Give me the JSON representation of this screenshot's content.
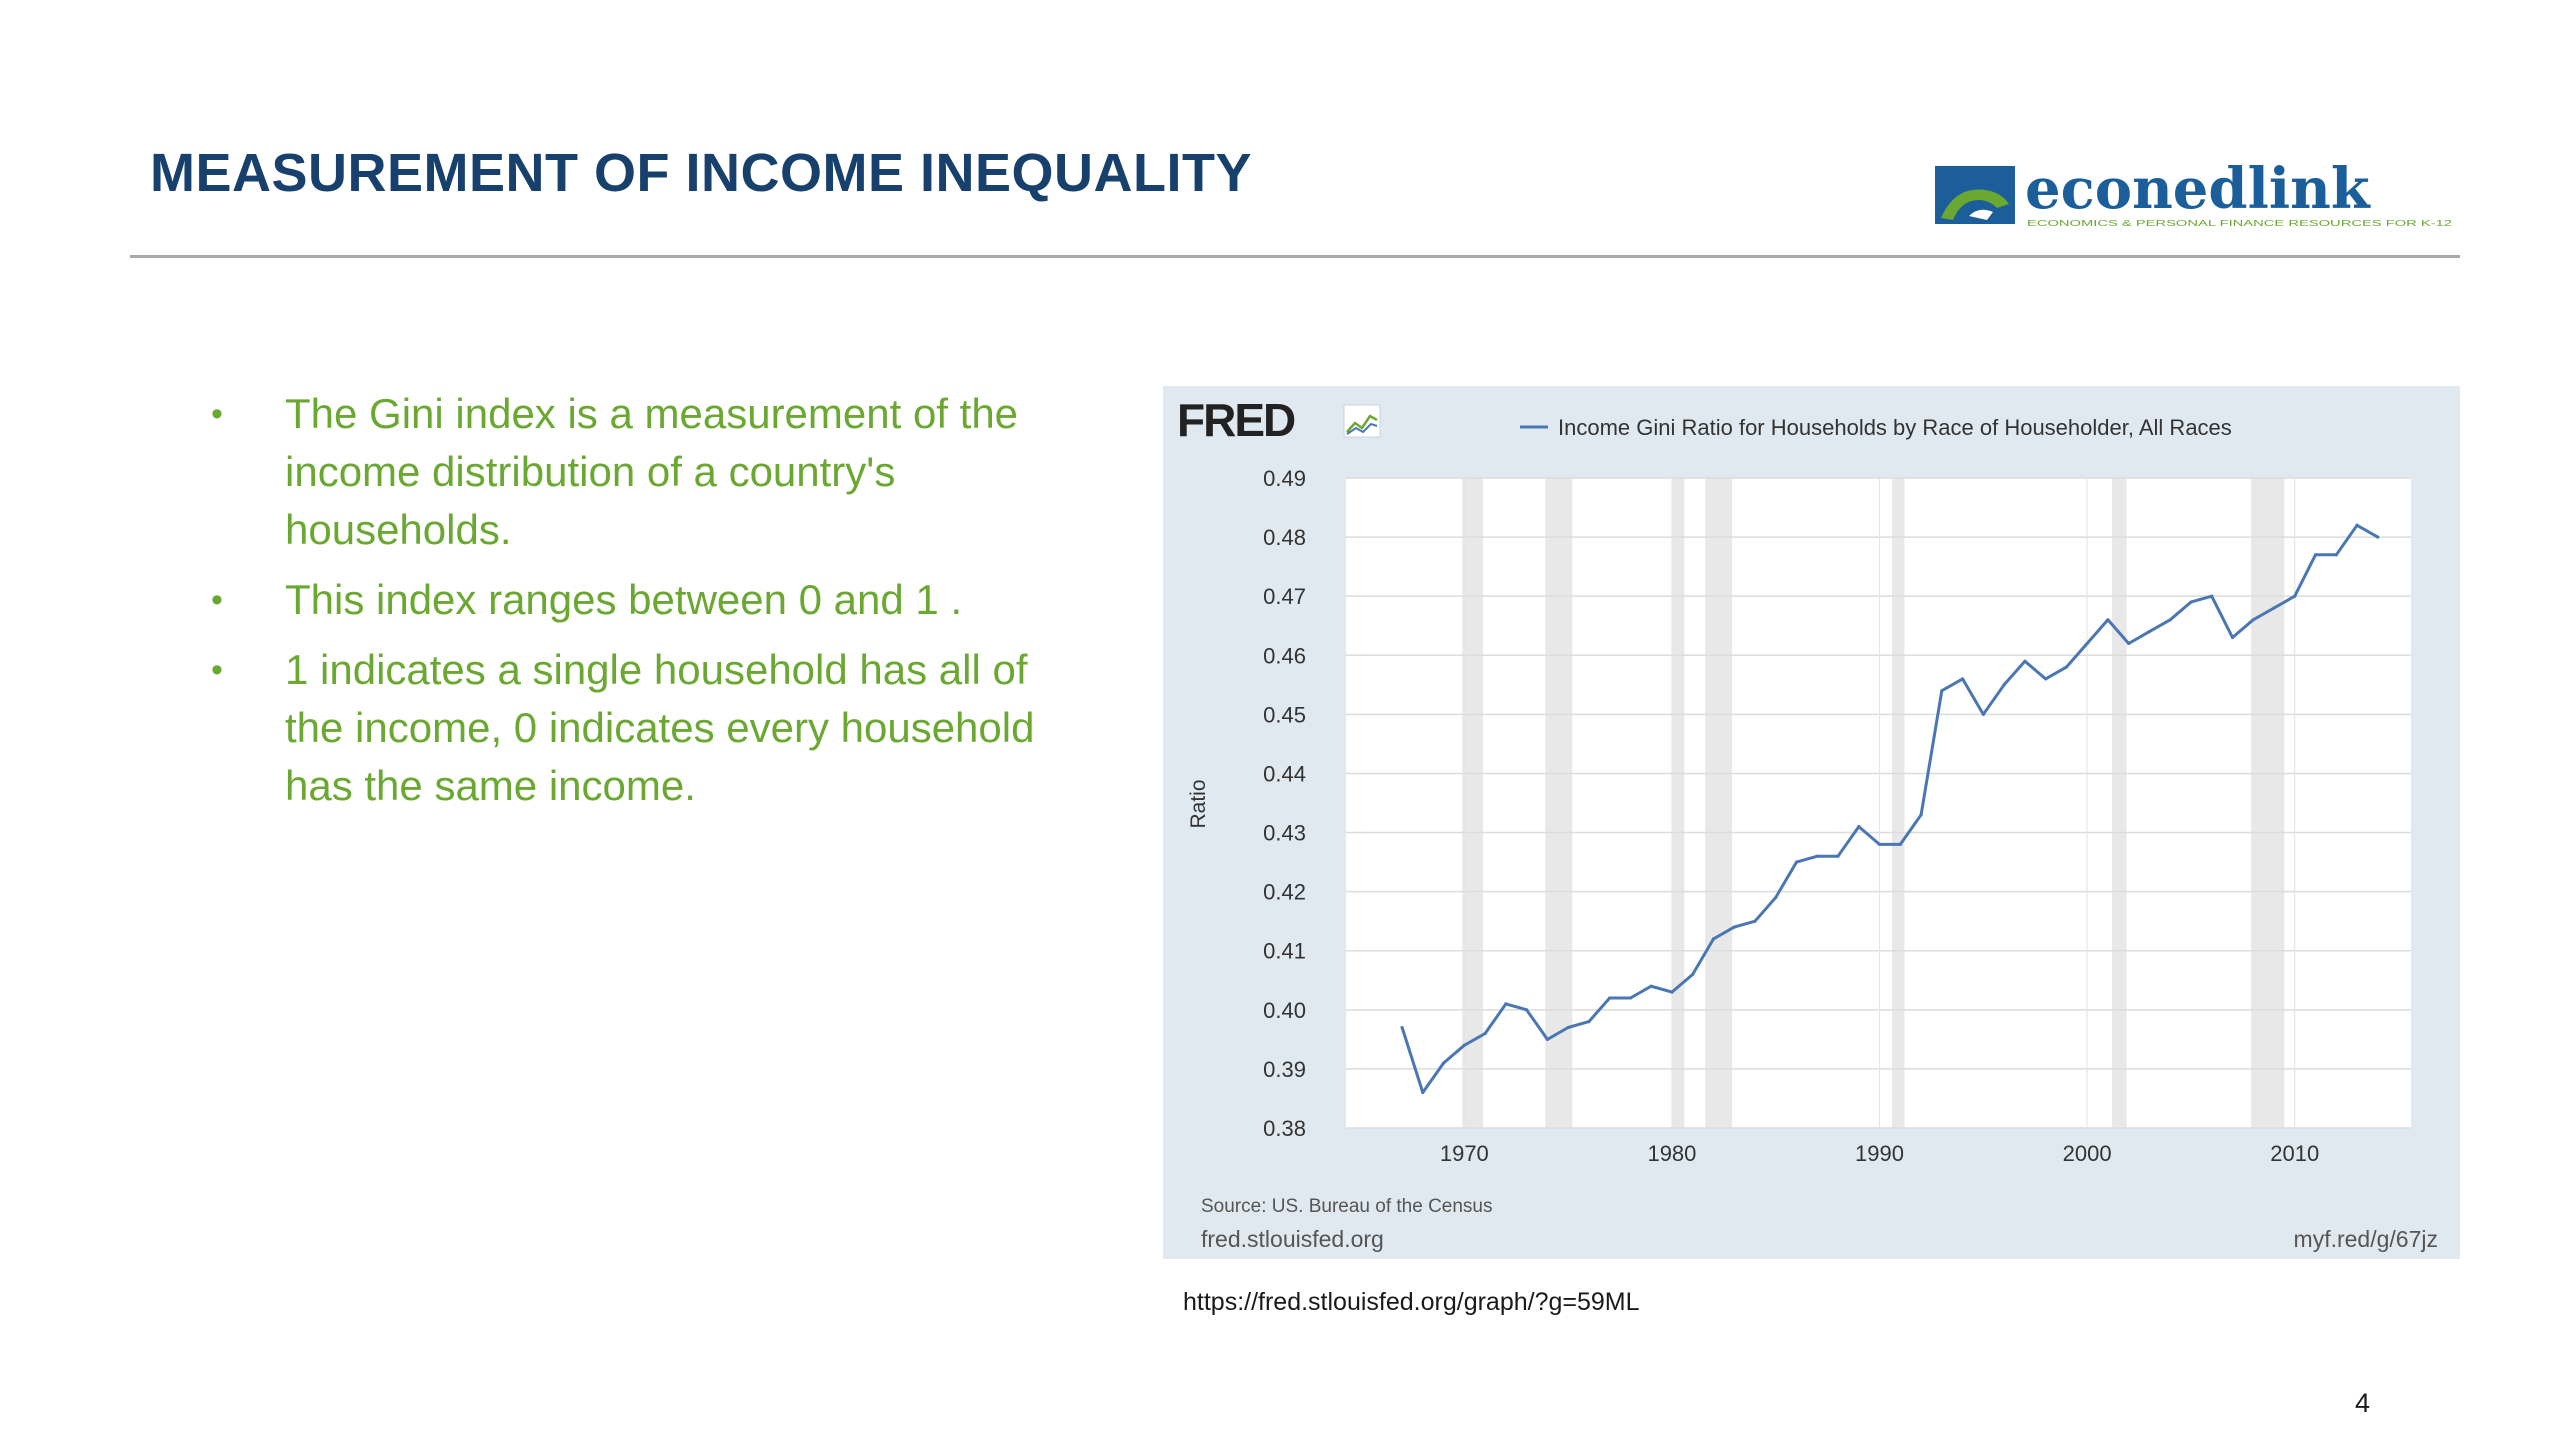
{
  "slide": {
    "title": "MEASUREMENT OF INCOME INEQUALITY",
    "page_number": "4",
    "url_caption": "https://fred.stlouisfed.org/graph/?g=59ML"
  },
  "logo": {
    "text": "econedlink",
    "tagline": "ECONOMICS & PERSONAL FINANCE RESOURCES FOR K-12",
    "colors": {
      "blue": "#1b5e9a",
      "green": "#6aa832"
    }
  },
  "bullets": [
    "The Gini index is a measurement of the income distribution of a country's households.",
    "This index ranges between 0 and 1 .",
    "1 indicates a single household has all of the income, 0 indicates every household has the same income."
  ],
  "chart_data": {
    "type": "line",
    "brand": "FRED",
    "legend": [
      "Income Gini Ratio for Households by Race of Householder, All Races"
    ],
    "legend_position": "top",
    "ylabel": "Ratio",
    "xlabel": "",
    "ylim": [
      0.38,
      0.49
    ],
    "xlim": [
      1964.3,
      2015.6
    ],
    "y_ticks": [
      "0.38",
      "0.39",
      "0.40",
      "0.41",
      "0.42",
      "0.43",
      "0.44",
      "0.45",
      "0.46",
      "0.47",
      "0.48",
      "0.49"
    ],
    "x_ticks": [
      "1970",
      "1980",
      "1990",
      "2000",
      "2010"
    ],
    "grid": true,
    "recession_bands": [
      [
        1969.9,
        1970.9
      ],
      [
        1973.9,
        1975.2
      ],
      [
        1980.0,
        1980.6
      ],
      [
        1981.6,
        1982.9
      ],
      [
        1990.6,
        1991.2
      ],
      [
        2001.2,
        2001.9
      ],
      [
        2007.9,
        2009.5
      ]
    ],
    "source": "Source: US. Bureau of the Census",
    "footer_left": "fred.stlouisfed.org",
    "footer_right": "myf.red/g/67jz",
    "colors": {
      "line": "#4a77b4",
      "panel": "#e1e9f0",
      "band": "#e8e8e8"
    },
    "series": [
      {
        "name": "Income Gini Ratio for Households by Race of Householder, All Races",
        "x": [
          1967,
          1968,
          1969,
          1970,
          1971,
          1972,
          1973,
          1974,
          1975,
          1976,
          1977,
          1978,
          1979,
          1980,
          1981,
          1982,
          1983,
          1984,
          1985,
          1986,
          1987,
          1988,
          1989,
          1990,
          1991,
          1992,
          1993,
          1994,
          1995,
          1996,
          1997,
          1998,
          1999,
          2000,
          2001,
          2002,
          2003,
          2004,
          2005,
          2006,
          2007,
          2008,
          2009,
          2010,
          2011,
          2012,
          2013,
          2014
        ],
        "values": [
          0.397,
          0.386,
          0.391,
          0.394,
          0.396,
          0.401,
          0.4,
          0.395,
          0.397,
          0.398,
          0.402,
          0.402,
          0.404,
          0.403,
          0.406,
          0.412,
          0.414,
          0.415,
          0.419,
          0.425,
          0.426,
          0.426,
          0.431,
          0.428,
          0.428,
          0.433,
          0.454,
          0.456,
          0.45,
          0.455,
          0.459,
          0.456,
          0.458,
          0.462,
          0.466,
          0.462,
          0.464,
          0.466,
          0.469,
          0.47,
          0.463,
          0.466,
          0.468,
          0.47,
          0.477,
          0.477,
          0.482,
          0.48
        ]
      }
    ]
  }
}
